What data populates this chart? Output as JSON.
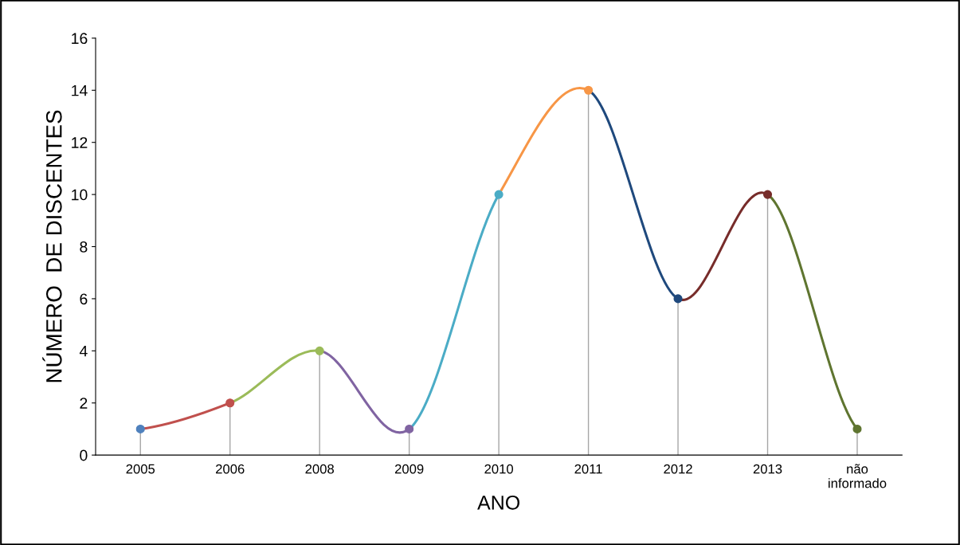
{
  "chart_data": {
    "type": "line",
    "xlabel": "ANO",
    "ylabel": "NÚMERO  DE DISCENTES",
    "categories": [
      "2005",
      "2006",
      "2008",
      "2009",
      "2010",
      "2011",
      "2012",
      "2013",
      "não\ninformado"
    ],
    "series": [
      {
        "type": "lollipop",
        "marker": "circle",
        "colors": [
          "#4f81bd",
          "#c0504d",
          "#9bbb59",
          "#8064a2",
          "#4bacc6",
          "#f79646",
          "#1f497d",
          "#772c2a",
          "#5f7530"
        ],
        "values": [
          1,
          2,
          4,
          1,
          10,
          14,
          6,
          10,
          1
        ]
      },
      {
        "color": "#c0504d",
        "values": [
          1,
          2,
          null,
          null,
          null,
          null,
          null,
          null,
          null
        ]
      },
      {
        "color": "#9bbb59",
        "values": [
          null,
          2,
          4,
          null,
          null,
          null,
          null,
          null,
          null
        ]
      },
      {
        "color": "#8064a2",
        "values": [
          null,
          null,
          4,
          1,
          null,
          null,
          null,
          null,
          null
        ]
      },
      {
        "color": "#4bacc6",
        "values": [
          null,
          null,
          null,
          1,
          10,
          null,
          null,
          null,
          null
        ]
      },
      {
        "color": "#f79646",
        "values": [
          null,
          null,
          null,
          null,
          10,
          14,
          null,
          null,
          null
        ]
      },
      {
        "color": "#1f497d",
        "values": [
          null,
          null,
          null,
          null,
          null,
          14,
          6,
          null,
          null
        ]
      },
      {
        "color": "#772c2a",
        "values": [
          null,
          null,
          null,
          null,
          null,
          null,
          6,
          10,
          null
        ]
      },
      {
        "color": "#5f7530",
        "values": [
          null,
          null,
          null,
          null,
          null,
          null,
          null,
          10,
          1
        ]
      }
    ],
    "ylim": [
      0,
      16
    ],
    "yticks": [
      0,
      2,
      4,
      6,
      8,
      10,
      12,
      14,
      16
    ],
    "legend": false,
    "marker": "none",
    "line_style": "solid"
  }
}
